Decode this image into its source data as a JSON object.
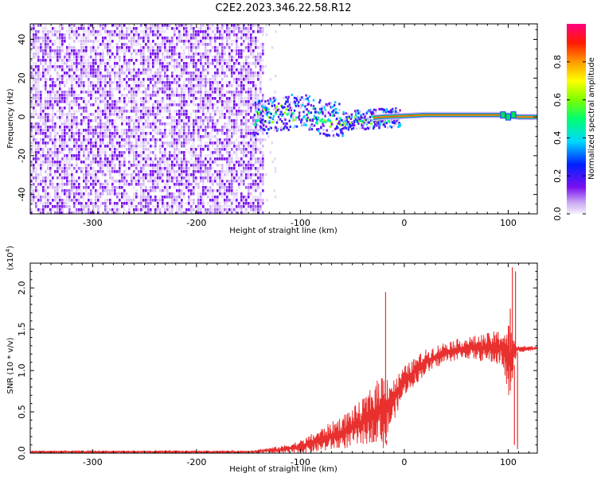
{
  "title": "C2E2.2023.346.22.58.R12",
  "chart_data": [
    {
      "type": "heatmap",
      "xlabel": "Height of straight line (km)",
      "ylabel": "Frequency (Hz)",
      "xlim": [
        -360,
        128
      ],
      "ylim": [
        -50,
        48
      ],
      "x_ticks": [
        -300,
        -200,
        -100,
        0,
        100
      ],
      "y_ticks": [
        -40,
        -20,
        0,
        20,
        40
      ],
      "colorbar": {
        "label": "Normalized spectral amplitude",
        "ticks": [
          "0.0",
          "0.2",
          "0.4",
          "0.6",
          "0.8"
        ],
        "range": [
          0,
          1
        ]
      },
      "noise_region_x": [
        -360,
        -135
      ],
      "signal_track": [
        {
          "x": -145,
          "y": 0,
          "amplitude": 0.45
        },
        {
          "x": -120,
          "y": 2,
          "amplitude": 0.5
        },
        {
          "x": -100,
          "y": 4,
          "amplitude": 0.45
        },
        {
          "x": -80,
          "y": 0,
          "amplitude": 0.5
        },
        {
          "x": -60,
          "y": -1,
          "amplitude": 0.5
        },
        {
          "x": -40,
          "y": -1,
          "amplitude": 0.55
        },
        {
          "x": -20,
          "y": 0,
          "amplitude": 0.7
        },
        {
          "x": 0,
          "y": 0.5,
          "amplitude": 0.85
        },
        {
          "x": 20,
          "y": 1,
          "amplitude": 0.9
        },
        {
          "x": 60,
          "y": 1,
          "amplitude": 0.9
        },
        {
          "x": 95,
          "y": 1,
          "amplitude": 0.8
        },
        {
          "x": 110,
          "y": 0,
          "amplitude": 0.9
        },
        {
          "x": 128,
          "y": 0,
          "amplitude": 0.9
        }
      ]
    },
    {
      "type": "line",
      "xlabel": "Height of straight line (km)",
      "ylabel": "SNR (10 * v/v)",
      "y_multiplier": "(x10",
      "y_multiplier_exp": "4",
      "xlim": [
        -360,
        128
      ],
      "ylim": [
        0,
        2.3
      ],
      "x_ticks": [
        -300,
        -200,
        -100,
        0,
        100
      ],
      "y_ticks": [
        "0.0",
        "0.5",
        "1.0",
        "1.5",
        "2.0"
      ],
      "color": "#e8312f",
      "envelope": [
        {
          "x": -360,
          "low": 0.0,
          "high": 0.03
        },
        {
          "x": -150,
          "low": 0.0,
          "high": 0.03
        },
        {
          "x": -120,
          "low": 0.0,
          "high": 0.08
        },
        {
          "x": -100,
          "low": 0.0,
          "high": 0.15
        },
        {
          "x": -80,
          "low": 0.02,
          "high": 0.3
        },
        {
          "x": -60,
          "low": 0.05,
          "high": 0.45
        },
        {
          "x": -40,
          "low": 0.1,
          "high": 0.65
        },
        {
          "x": -25,
          "low": 0.15,
          "high": 0.9
        },
        {
          "x": -20,
          "low": 0.05,
          "high": 1.0
        },
        {
          "x": -10,
          "low": 0.4,
          "high": 0.9
        },
        {
          "x": 0,
          "low": 0.7,
          "high": 1.05
        },
        {
          "x": 20,
          "low": 0.95,
          "high": 1.25
        },
        {
          "x": 40,
          "low": 1.1,
          "high": 1.35
        },
        {
          "x": 60,
          "low": 1.15,
          "high": 1.4
        },
        {
          "x": 80,
          "low": 1.1,
          "high": 1.45
        },
        {
          "x": 95,
          "low": 1.05,
          "high": 1.5
        },
        {
          "x": 100,
          "low": 0.6,
          "high": 1.6
        },
        {
          "x": 108,
          "low": 1.22,
          "high": 1.3
        },
        {
          "x": 128,
          "low": 1.25,
          "high": 1.29
        }
      ],
      "spikes": [
        {
          "x": -18,
          "y": 1.95
        },
        {
          "x": -17,
          "y": 0.1
        },
        {
          "x": 102,
          "y": 1.75
        },
        {
          "x": 104,
          "y": 2.25
        },
        {
          "x": 106,
          "y": 0.1
        },
        {
          "x": 107,
          "y": 2.2
        },
        {
          "x": 109,
          "y": 0.05
        }
      ]
    }
  ]
}
